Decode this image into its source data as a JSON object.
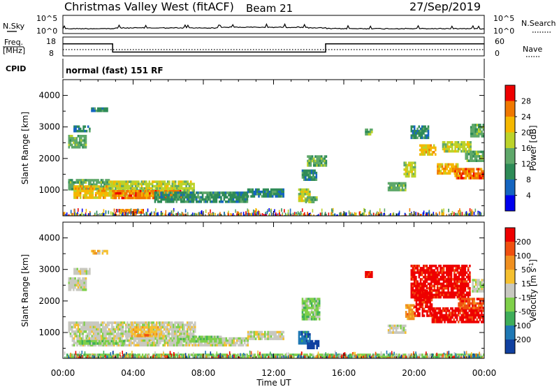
{
  "header": {
    "title": "Christmas Valley West (fitACF)",
    "beam": "Beam 21",
    "date": "27/Sep/2019"
  },
  "top_panels": {
    "nsky_label": "N.Sky",
    "nsky_ticks": [
      "10^5",
      "10^0"
    ],
    "nsky_right_ticks": [
      "10^5",
      "10^0"
    ],
    "nsearch_label": "N.Search",
    "freq_label_1": "Freq.",
    "freq_label_2": "[MHz]",
    "freq_ticks": [
      "18",
      "8"
    ],
    "nave_ticks": [
      "60",
      "0"
    ],
    "nave_label": "Nave",
    "cpid_label": "CPID",
    "cpid_text": "normal (fast) 151 RF",
    "freq_steps": [
      {
        "from": "00:00",
        "to": "02:50",
        "mhz": 15.2
      },
      {
        "from": "02:50",
        "to": "14:58",
        "mhz": 10.3
      },
      {
        "from": "14:58",
        "to": "24:00",
        "mhz": 15.2
      }
    ]
  },
  "chart_data": [
    {
      "type": "heatmap",
      "name": "power",
      "ylabel": "Slant Range [km]",
      "yticks": [
        "4000",
        "3000",
        "2000",
        "1000"
      ],
      "ylim": [
        180,
        4500
      ],
      "xlim_hours": [
        0,
        24
      ],
      "colorbar_label": "Power [dB]",
      "colorbar_ticks": [
        "28",
        "24",
        "20",
        "16",
        "12",
        "8",
        "4"
      ],
      "colorbar_range": [
        0,
        32
      ],
      "colors": [
        "#0000ee",
        "#1565c0",
        "#2e8b57",
        "#5fa86a",
        "#bcd32a",
        "#f5b800",
        "#f07800",
        "#ee0000"
      ],
      "regions": [
        {
          "t0": 0.3,
          "t1": 1.3,
          "r0": 2350,
          "r1": 2750,
          "level": 3
        },
        {
          "t0": 0.6,
          "t1": 1.5,
          "r0": 2850,
          "r1": 3050,
          "level": 2
        },
        {
          "t0": 1.6,
          "t1": 2.5,
          "r0": 3480,
          "r1": 3620,
          "level": 2
        },
        {
          "t0": 0.3,
          "t1": 2.6,
          "r0": 1050,
          "r1": 1350,
          "level": 3
        },
        {
          "t0": 0.6,
          "t1": 2.8,
          "r0": 750,
          "r1": 1150,
          "level": 5
        },
        {
          "t0": 2.6,
          "t1": 7.5,
          "r0": 850,
          "r1": 1300,
          "level": 4
        },
        {
          "t0": 2.8,
          "t1": 6.8,
          "r0": 750,
          "r1": 1000,
          "level": 6
        },
        {
          "t0": 5.2,
          "t1": 10.5,
          "r0": 600,
          "r1": 950,
          "level": 2
        },
        {
          "t0": 10.5,
          "t1": 12.6,
          "r0": 800,
          "r1": 1050,
          "level": 2
        },
        {
          "t0": 13.4,
          "t1": 14.1,
          "r0": 680,
          "r1": 1050,
          "level": 4
        },
        {
          "t0": 13.8,
          "t1": 14.5,
          "r0": 600,
          "r1": 800,
          "level": 3
        },
        {
          "t0": 13.9,
          "t1": 15.0,
          "r0": 1800,
          "r1": 2100,
          "level": 3
        },
        {
          "t0": 13.6,
          "t1": 14.4,
          "r0": 1350,
          "r1": 1650,
          "level": 2
        },
        {
          "t0": 3.2,
          "t1": 4.6,
          "r0": 280,
          "r1": 400,
          "level": 6
        },
        {
          "t0": 18.5,
          "t1": 19.5,
          "r0": 1000,
          "r1": 1250,
          "level": 3
        },
        {
          "t0": 19.4,
          "t1": 20.1,
          "r0": 1450,
          "r1": 1900,
          "level": 4
        },
        {
          "t0": 20.3,
          "t1": 21.2,
          "r0": 2100,
          "r1": 2450,
          "level": 5
        },
        {
          "t0": 21.3,
          "t1": 22.5,
          "r0": 1500,
          "r1": 1850,
          "level": 5
        },
        {
          "t0": 22.3,
          "t1": 24.0,
          "r0": 1350,
          "r1": 1700,
          "level": 6
        },
        {
          "t0": 21.6,
          "t1": 23.2,
          "r0": 2200,
          "r1": 2550,
          "level": 4
        },
        {
          "t0": 23.2,
          "t1": 24.0,
          "r0": 2700,
          "r1": 3100,
          "level": 3
        },
        {
          "t0": 22.9,
          "t1": 24.0,
          "r0": 1950,
          "r1": 2250,
          "level": 3
        },
        {
          "t0": 19.8,
          "t1": 20.8,
          "r0": 2650,
          "r1": 3050,
          "level": 2
        },
        {
          "t0": 17.2,
          "t1": 17.6,
          "r0": 2800,
          "r1": 2950,
          "level": 3
        }
      ]
    },
    {
      "type": "heatmap",
      "name": "velocity",
      "ylabel": "Slant Range [km]",
      "yticks": [
        "4000",
        "3000",
        "2000",
        "1000"
      ],
      "ylim": [
        180,
        4500
      ],
      "xlim_hours": [
        0,
        24
      ],
      "xticks": [
        "00:00",
        "04:00",
        "08:00",
        "12:00",
        "16:00",
        "20:00",
        "00:00"
      ],
      "xlabel": "Time UT",
      "colorbar_label": "Velocity [m s",
      "colorbar_label_sup": "-1",
      "colorbar_ticks": [
        "200",
        "100",
        "50",
        "15",
        "-15",
        "-50",
        "-100",
        "-200"
      ],
      "colors": [
        "#1040a0",
        "#1f78b4",
        "#3fae5a",
        "#7fd04a",
        "#c8c8c0",
        "#f5c030",
        "#f09020",
        "#f05010",
        "#ee0000"
      ],
      "regions": [
        {
          "t0": 0.3,
          "t1": 1.3,
          "r0": 2350,
          "r1": 2750,
          "level": 4
        },
        {
          "t0": 0.6,
          "t1": 1.5,
          "r0": 2850,
          "r1": 3050,
          "level": 4
        },
        {
          "t0": 1.6,
          "t1": 2.5,
          "r0": 3480,
          "r1": 3620,
          "level": 5
        },
        {
          "t0": 0.3,
          "t1": 7.5,
          "r0": 900,
          "r1": 1350,
          "level": 4
        },
        {
          "t0": 3.8,
          "t1": 5.6,
          "r0": 800,
          "r1": 1200,
          "level": 5
        },
        {
          "t0": 4.2,
          "t1": 5.0,
          "r0": 750,
          "r1": 950,
          "level": 6
        },
        {
          "t0": 0.5,
          "t1": 10.5,
          "r0": 600,
          "r1": 850,
          "level": 4
        },
        {
          "t0": 0.8,
          "t1": 3.5,
          "r0": 620,
          "r1": 760,
          "level": 3
        },
        {
          "t0": 6.5,
          "t1": 9.0,
          "r0": 700,
          "r1": 900,
          "level": 3
        },
        {
          "t0": 10.5,
          "t1": 12.6,
          "r0": 800,
          "r1": 1050,
          "level": 4
        },
        {
          "t0": 13.4,
          "t1": 14.1,
          "r0": 680,
          "r1": 1050,
          "level": 1
        },
        {
          "t0": 13.9,
          "t1": 14.6,
          "r0": 520,
          "r1": 760,
          "level": 0
        },
        {
          "t0": 13.6,
          "t1": 14.6,
          "r0": 1400,
          "r1": 2100,
          "level": 3
        },
        {
          "t0": 17.2,
          "t1": 17.6,
          "r0": 2800,
          "r1": 2950,
          "level": 8
        },
        {
          "t0": 18.5,
          "t1": 19.5,
          "r0": 1000,
          "r1": 1250,
          "level": 4
        },
        {
          "t0": 19.5,
          "t1": 20.0,
          "r0": 1450,
          "r1": 1900,
          "level": 6
        },
        {
          "t0": 19.8,
          "t1": 23.2,
          "r0": 2150,
          "r1": 3150,
          "level": 8
        },
        {
          "t0": 20.0,
          "t1": 21.0,
          "r0": 1550,
          "r1": 2350,
          "level": 8
        },
        {
          "t0": 21.0,
          "t1": 24.0,
          "r0": 1350,
          "r1": 1800,
          "level": 8
        },
        {
          "t0": 22.5,
          "t1": 24.0,
          "r0": 1800,
          "r1": 2100,
          "level": 7
        },
        {
          "t0": 23.3,
          "t1": 24.0,
          "r0": 2300,
          "r1": 2700,
          "level": 4
        },
        {
          "t0": 0.2,
          "t1": 24.0,
          "r0": 200,
          "r1": 330,
          "level": 3
        }
      ]
    }
  ]
}
